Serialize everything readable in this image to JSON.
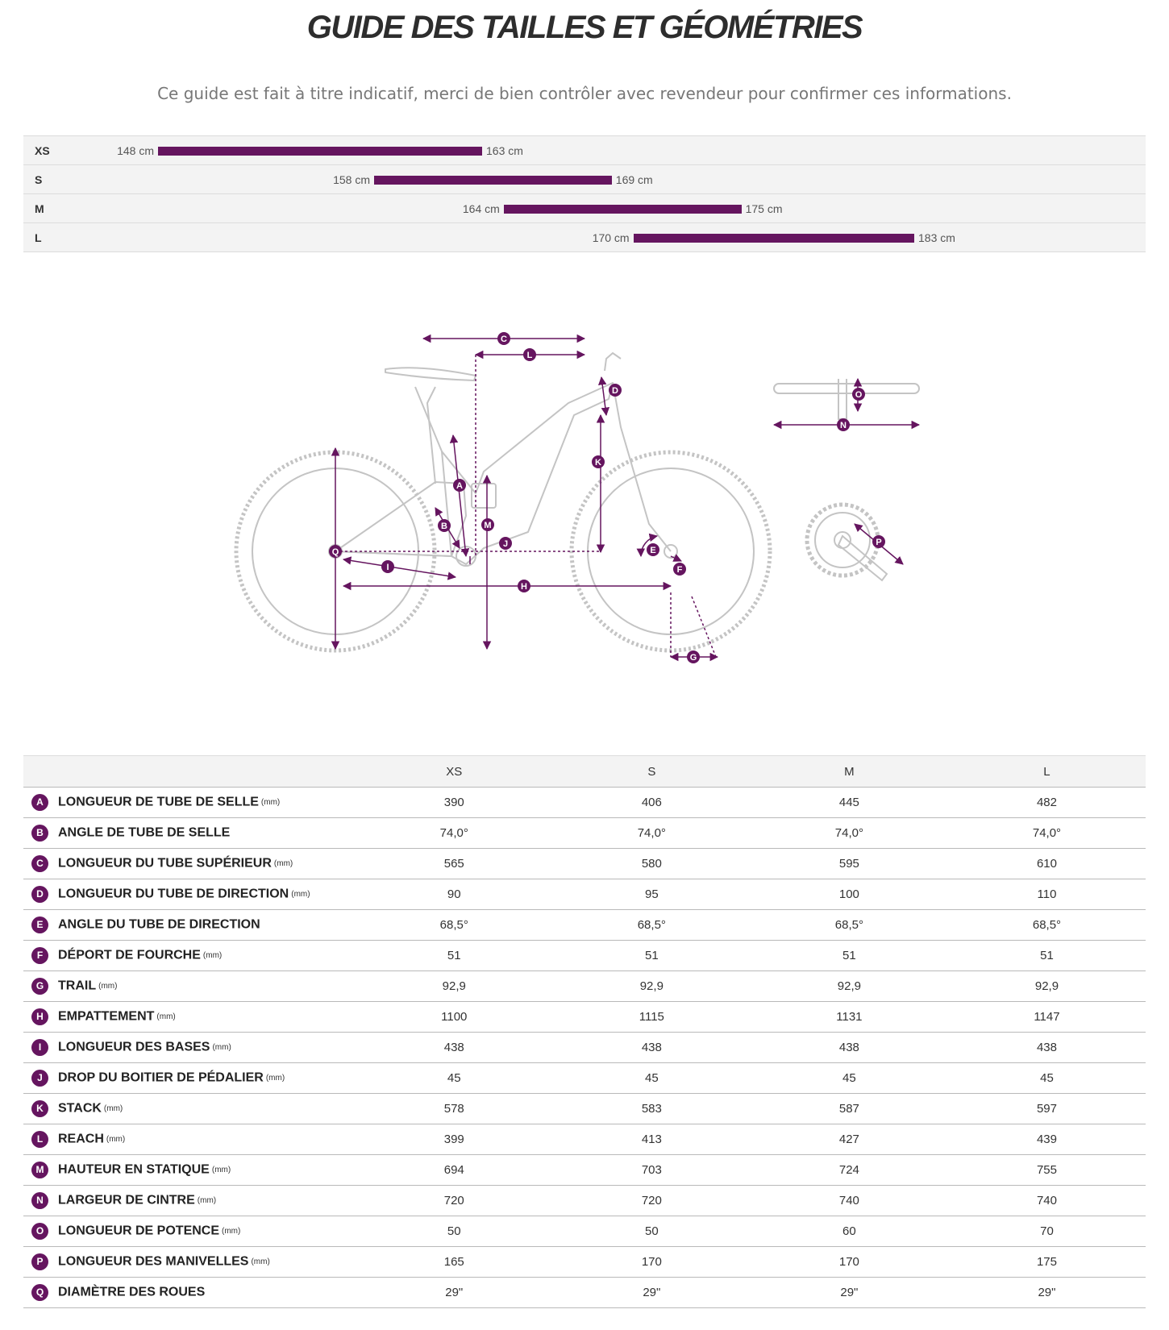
{
  "title": "GUIDE DES TAILLES ET GÉOMÉTRIES",
  "subtitle": "Ce guide est fait à titre indicatif, merci de bien contrôler avec revendeur pour confirmer ces informations.",
  "colors": {
    "accent": "#65155f",
    "row_bg": "#f3f3f3",
    "line": "#c8c8c8"
  },
  "size_ranges": [
    {
      "size": "XS",
      "min_label": "148 cm",
      "max_label": "163 cm",
      "min": 148,
      "max": 163
    },
    {
      "size": "S",
      "min_label": "158 cm",
      "max_label": "169 cm",
      "min": 158,
      "max": 169
    },
    {
      "size": "M",
      "min_label": "164 cm",
      "max_label": "175 cm",
      "min": 164,
      "max": 175
    },
    {
      "size": "L",
      "min_label": "170 cm",
      "max_label": "183 cm",
      "min": 170,
      "max": 183
    }
  ],
  "diagram": {
    "labels": [
      "A",
      "B",
      "C",
      "D",
      "E",
      "F",
      "G",
      "H",
      "I",
      "J",
      "K",
      "L",
      "M",
      "N",
      "O",
      "P",
      "Q"
    ]
  },
  "table": {
    "headers": [
      "",
      "XS",
      "S",
      "M",
      "L"
    ],
    "rows": [
      {
        "letter": "A",
        "name": "LONGUEUR DE TUBE DE SELLE",
        "unit": "(mm)",
        "values": [
          "390",
          "406",
          "445",
          "482"
        ]
      },
      {
        "letter": "B",
        "name": "ANGLE DE TUBE DE SELLE",
        "unit": "",
        "values": [
          "74,0°",
          "74,0°",
          "74,0°",
          "74,0°"
        ]
      },
      {
        "letter": "C",
        "name": "LONGUEUR DU TUBE SUPÉRIEUR",
        "unit": "(mm)",
        "values": [
          "565",
          "580",
          "595",
          "610"
        ]
      },
      {
        "letter": "D",
        "name": "LONGUEUR DU TUBE DE DIRECTION",
        "unit": "(mm)",
        "values": [
          "90",
          "95",
          "100",
          "110"
        ]
      },
      {
        "letter": "E",
        "name": "ANGLE DU TUBE DE DIRECTION",
        "unit": "",
        "values": [
          "68,5°",
          "68,5°",
          "68,5°",
          "68,5°"
        ]
      },
      {
        "letter": "F",
        "name": "DÉPORT DE FOURCHE",
        "unit": "(mm)",
        "values": [
          "51",
          "51",
          "51",
          "51"
        ]
      },
      {
        "letter": "G",
        "name": "TRAIL",
        "unit": "(mm)",
        "values": [
          "92,9",
          "92,9",
          "92,9",
          "92,9"
        ]
      },
      {
        "letter": "H",
        "name": "EMPATTEMENT",
        "unit": "(mm)",
        "values": [
          "1100",
          "1115",
          "1131",
          "1147"
        ]
      },
      {
        "letter": "I",
        "name": "LONGUEUR DES BASES",
        "unit": "(mm)",
        "values": [
          "438",
          "438",
          "438",
          "438"
        ]
      },
      {
        "letter": "J",
        "name": "DROP DU BOITIER DE PÉDALIER",
        "unit": "(mm)",
        "values": [
          "45",
          "45",
          "45",
          "45"
        ]
      },
      {
        "letter": "K",
        "name": "STACK",
        "unit": "(mm)",
        "values": [
          "578",
          "583",
          "587",
          "597"
        ]
      },
      {
        "letter": "L",
        "name": "REACH",
        "unit": "(mm)",
        "values": [
          "399",
          "413",
          "427",
          "439"
        ]
      },
      {
        "letter": "M",
        "name": "HAUTEUR EN STATIQUE",
        "unit": "(mm)",
        "values": [
          "694",
          "703",
          "724",
          "755"
        ]
      },
      {
        "letter": "N",
        "name": "LARGEUR DE CINTRE",
        "unit": "(mm)",
        "values": [
          "720",
          "720",
          "740",
          "740"
        ]
      },
      {
        "letter": "O",
        "name": "LONGUEUR DE POTENCE",
        "unit": "(mm)",
        "values": [
          "50",
          "50",
          "60",
          "70"
        ]
      },
      {
        "letter": "P",
        "name": "LONGUEUR DES MANIVELLES",
        "unit": "(mm)",
        "values": [
          "165",
          "170",
          "170",
          "175"
        ]
      },
      {
        "letter": "Q",
        "name": "DIAMÈTRE DES ROUES",
        "unit": "",
        "values": [
          "29\"",
          "29\"",
          "29\"",
          "29\""
        ]
      }
    ]
  }
}
